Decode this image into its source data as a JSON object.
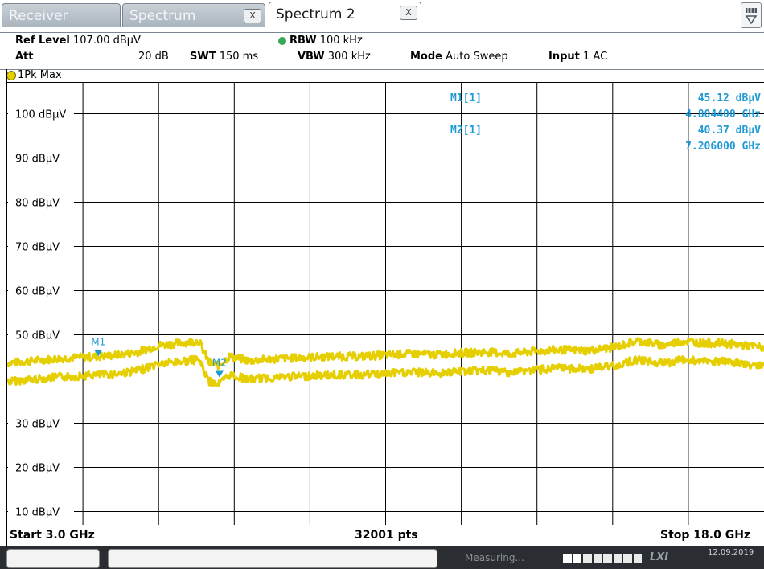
{
  "tabs": {
    "receiver": "Receiver",
    "spectrum": "Spectrum",
    "spectrum2": "Spectrum 2",
    "close_glyph": "X"
  },
  "settings": {
    "ref_level_label": "Ref Level",
    "ref_level_value": "107.00 dBµV",
    "att_label": "Att",
    "att_value": "20 dB",
    "swt_label": "SWT",
    "swt_value": "150 ms",
    "rbw_label": "RBW",
    "rbw_value": "100 kHz",
    "vbw_label": "VBW",
    "vbw_value": "300 kHz",
    "mode_label": "Mode",
    "mode_value": "Auto Sweep",
    "input_label": "Input",
    "input_value": "1 AC"
  },
  "trace": {
    "label": "1Pk Max",
    "color": "#e6cf00"
  },
  "markers": {
    "m1_label": "M1[1]",
    "m1_level": "45.12 dBµV",
    "m1_freq": "4.804400 GHz",
    "m2_label": "M2[1]",
    "m2_level": "40.37 dBµV",
    "m2_freq": "7.206000 GHz",
    "m1_tag": "M1",
    "m2_tag": "M2",
    "color": "#1f9ad6"
  },
  "footer": {
    "start": "Start 3.0 GHz",
    "points": "32001 pts",
    "stop": "Stop 18.0 GHz"
  },
  "status": {
    "measuring": "Measuring...",
    "logo": "LXI",
    "date": "12.09.2019"
  },
  "chart_data": {
    "type": "line",
    "x_start_ghz": 3.0,
    "x_stop_ghz": 18.0,
    "y_ticks": [
      "100 dBµV",
      "90 dBµV",
      "80 dBµV",
      "70 dBµV",
      "60 dBµV",
      "50 dBµV",
      "30 dBµV",
      "20 dBµV",
      "10 dBµV"
    ],
    "y_tick_values": [
      100,
      90,
      80,
      70,
      60,
      50,
      30,
      20,
      10
    ],
    "ylim": [
      7,
      107
    ],
    "grid": true,
    "series": [
      {
        "x_ghz": [
          3.0,
          3.5,
          4.0,
          4.5,
          4.8,
          5.2,
          5.6,
          6.0,
          6.4,
          6.8,
          7.0,
          7.2,
          7.4,
          7.8,
          8.2,
          8.6,
          9.0,
          9.5,
          10.0,
          10.5,
          11.0,
          11.5,
          12.0,
          12.5,
          13.0,
          13.5,
          14.0,
          14.5,
          15.0,
          15.5,
          16.0,
          16.4,
          16.8,
          17.2,
          17.6,
          18.0
        ],
        "y_dbuv": [
          41.5,
          42.0,
          42.5,
          42.8,
          43.0,
          43.3,
          44.0,
          45.5,
          46.0,
          46.5,
          41.5,
          41.0,
          43.0,
          42.0,
          42.4,
          42.6,
          42.8,
          43.0,
          43.0,
          43.3,
          43.6,
          43.4,
          43.8,
          44.0,
          43.6,
          44.2,
          44.5,
          44.3,
          45.0,
          46.5,
          45.5,
          46.5,
          46.0,
          46.0,
          45.5,
          45.0
        ]
      }
    ],
    "markers": [
      {
        "name": "M1",
        "x_ghz": 4.8044,
        "y_dbuv": 45.12
      },
      {
        "name": "M2",
        "x_ghz": 7.206,
        "y_dbuv": 40.37
      }
    ]
  }
}
